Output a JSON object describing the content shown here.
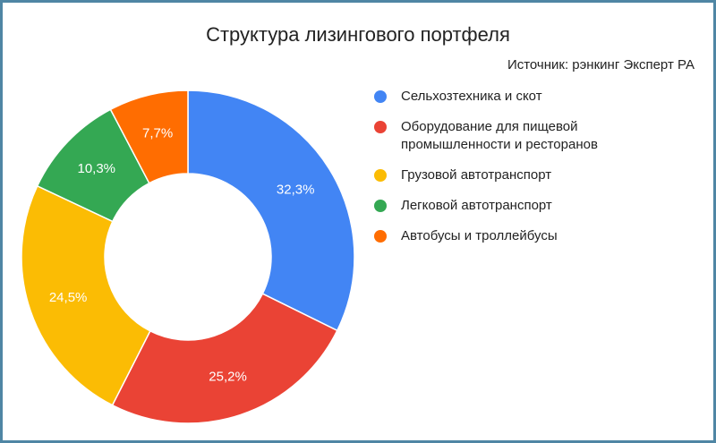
{
  "header": {
    "title": "Структура лизингового портфеля",
    "source": "Источник: рэнкинг Эксперт РА"
  },
  "chart_data": {
    "type": "pie",
    "subtype": "donut",
    "title": "Структура лизингового портфеля",
    "legend_position": "right",
    "slices": [
      {
        "label": "Сельхозтехника и скот",
        "value": 32.3,
        "display": "32,3%",
        "color": "#4285f4"
      },
      {
        "label": "Оборудование для пищевой\nпромышленности и ресторанов",
        "value": 25.2,
        "display": "25,2%",
        "color": "#ea4335"
      },
      {
        "label": "Грузовой автотранспорт",
        "value": 24.5,
        "display": "24,5%",
        "color": "#fbbc04"
      },
      {
        "label": "Легковой автотранспорт",
        "value": 10.3,
        "display": "10,3%",
        "color": "#34a853"
      },
      {
        "label": "Автобусы и троллейбусы",
        "value": 7.7,
        "display": "7,7%",
        "color": "#ff6d01"
      }
    ]
  }
}
